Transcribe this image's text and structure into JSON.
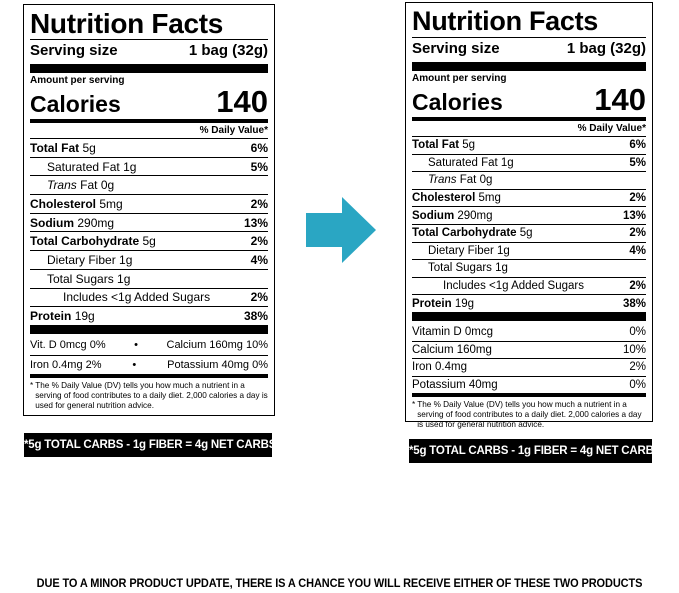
{
  "old_label": {
    "title": "Nutrition Facts",
    "serving_label": "Serving size",
    "serving_value": "1 bag (32g)",
    "amount_per_serving": "Amount per serving",
    "calories_label": "Calories",
    "calories_value": "140",
    "dv_header": "% Daily Value*",
    "rows": [
      {
        "label": "Total Fat",
        "amount": "5g",
        "dv": "6%"
      },
      {
        "label": "Saturated Fat",
        "amount": "1g",
        "dv": "5%"
      },
      {
        "label_italic": "Trans",
        "label": "Fat",
        "amount": "0g",
        "dv": ""
      },
      {
        "label": "Cholesterol",
        "amount": "5mg",
        "dv": "2%"
      },
      {
        "label": "Sodium",
        "amount": "290mg",
        "dv": "13%"
      },
      {
        "label": "Total Carbohydrate",
        "amount": "5g",
        "dv": "2%"
      },
      {
        "label": "Dietary Fiber",
        "amount": "1g",
        "dv": "4%"
      },
      {
        "label": "Total Sugars",
        "amount": "1g",
        "dv": ""
      },
      {
        "label": "Includes <1g Added Sugars",
        "amount": "",
        "dv": "2%"
      },
      {
        "label": "Protein",
        "amount": "19g",
        "dv": "38%"
      }
    ],
    "vitamins": [
      {
        "left": "Vit. D 0mcg 0%",
        "sep": "•",
        "right": "Calcium 160mg 10%"
      },
      {
        "left": "Iron 0.4mg 2%",
        "sep": "•",
        "right": "Potassium 40mg 0%"
      }
    ],
    "footnote_star": "*",
    "footnote": "The % Daily Value (DV) tells you how much a nutrient in a serving of food contributes to a daily diet. 2,000 calories a day is used for general nutrition advice."
  },
  "new_label": {
    "title": "Nutrition Facts",
    "serving_label": "Serving size",
    "serving_value": "1 bag (32g)",
    "amount_per_serving": "Amount per serving",
    "calories_label": "Calories",
    "calories_value": "140",
    "dv_header": "% Daily Value*",
    "rows": [
      {
        "label": "Total Fat",
        "amount": "5g",
        "dv": "6%"
      },
      {
        "label": "Saturated Fat",
        "amount": "1g",
        "dv": "5%"
      },
      {
        "label_italic": "Trans",
        "label": "Fat",
        "amount": "0g",
        "dv": ""
      },
      {
        "label": "Cholesterol",
        "amount": "5mg",
        "dv": "2%"
      },
      {
        "label": "Sodium",
        "amount": "290mg",
        "dv": "13%"
      },
      {
        "label": "Total Carbohydrate",
        "amount": "5g",
        "dv": "2%"
      },
      {
        "label": "Dietary Fiber",
        "amount": "1g",
        "dv": "4%"
      },
      {
        "label": "Total Sugars",
        "amount": "1g",
        "dv": ""
      },
      {
        "label": "Includes <1g Added Sugars",
        "amount": "",
        "dv": "2%"
      },
      {
        "label": "Protein",
        "amount": "19g",
        "dv": "38%"
      }
    ],
    "vitamins": [
      {
        "label": "Vitamin D",
        "amount": "0mcg",
        "dv": "0%"
      },
      {
        "label": "Calcium",
        "amount": "160mg",
        "dv": "10%"
      },
      {
        "label": "Iron",
        "amount": "0.4mg",
        "dv": "2%"
      },
      {
        "label": "Potassium",
        "amount": "40mg",
        "dv": "0%"
      }
    ],
    "footnote_star": "*",
    "footnote": "The % Daily Value (DV) tells you how much a nutrient in a serving of food contributes to a daily diet. 2,000 calories a day is used for general nutrition advice."
  },
  "net_carbs_banner": "*5g TOTAL CARBS - 1g FIBER = 4g NET CARBS",
  "arrow": {
    "icon": "arrow-right-icon",
    "color": "#2aa6c3"
  },
  "disclaimer": "DUE TO A MINOR PRODUCT UPDATE, THERE IS A CHANCE YOU WILL RECEIVE EITHER OF THESE TWO PRODUCTS"
}
